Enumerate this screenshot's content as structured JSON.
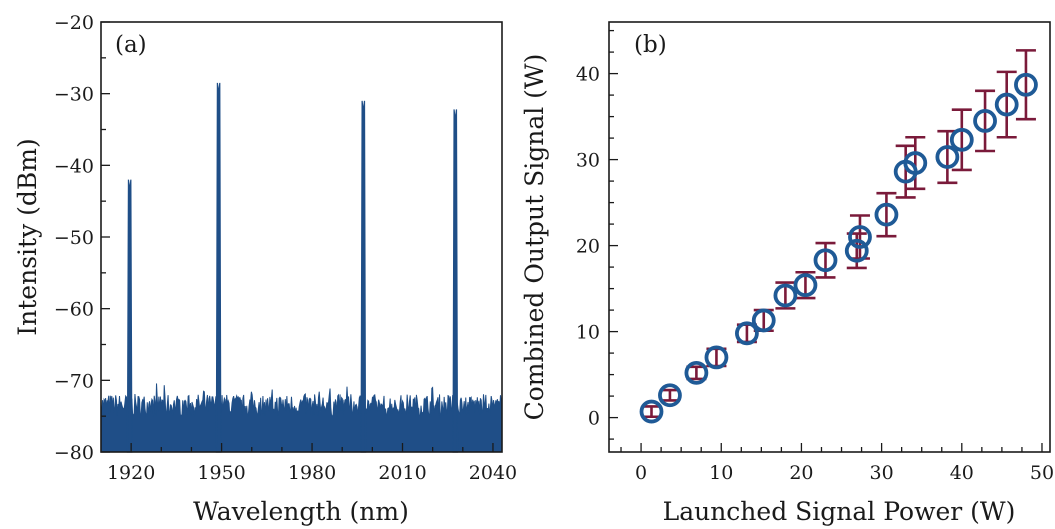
{
  "chart_data": [
    {
      "panel_label": "(a)",
      "type": "line",
      "xlabel": "Wavelength (nm)",
      "ylabel": "Intensity (dBm)",
      "xlim": [
        1910,
        2043
      ],
      "ylim": [
        -80,
        -20
      ],
      "xticks": [
        1920,
        1950,
        1980,
        2010,
        2040
      ],
      "yticks": [
        -80,
        -70,
        -60,
        -50,
        -40,
        -30,
        -20
      ],
      "noise_floor_dBm": -73.5,
      "peaks": [
        {
          "wavelength": 1919.5,
          "intensity": -43.5
        },
        {
          "wavelength": 1949.0,
          "intensity": -30.0
        },
        {
          "wavelength": 1997.0,
          "intensity": -32.5
        },
        {
          "wavelength": 2027.5,
          "intensity": -33.7
        }
      ],
      "line_color": "#1f4e87",
      "grid": false
    },
    {
      "panel_label": "(b)",
      "type": "scatter",
      "xlabel": "Launched Signal Power (W)",
      "ylabel": "Combined Output Signal (W)",
      "xlim": [
        -4,
        51
      ],
      "ylim": [
        -4,
        46
      ],
      "xticks": [
        0,
        10,
        20,
        30,
        40,
        50
      ],
      "yticks": [
        0,
        10,
        20,
        30,
        40
      ],
      "marker_color": "#1f5a96",
      "errorbar_color": "#7a1a3a",
      "grid": false,
      "points": [
        {
          "x": 1.3,
          "y": 0.7,
          "err": 0.6
        },
        {
          "x": 3.6,
          "y": 2.6,
          "err": 0.6
        },
        {
          "x": 6.9,
          "y": 5.2,
          "err": 0.7
        },
        {
          "x": 9.4,
          "y": 7.0,
          "err": 1.0
        },
        {
          "x": 13.2,
          "y": 9.8,
          "err": 1.0
        },
        {
          "x": 15.3,
          "y": 11.3,
          "err": 1.2
        },
        {
          "x": 18.0,
          "y": 14.2,
          "err": 1.5
        },
        {
          "x": 20.5,
          "y": 15.4,
          "err": 1.5
        },
        {
          "x": 23.0,
          "y": 18.3,
          "err": 2.0
        },
        {
          "x": 26.9,
          "y": 19.4,
          "err": 2.0
        },
        {
          "x": 27.3,
          "y": 21.0,
          "err": 2.5
        },
        {
          "x": 30.6,
          "y": 23.6,
          "err": 2.5
        },
        {
          "x": 33.0,
          "y": 28.6,
          "err": 3.0
        },
        {
          "x": 34.2,
          "y": 29.6,
          "err": 3.0
        },
        {
          "x": 38.2,
          "y": 30.3,
          "err": 3.0
        },
        {
          "x": 40.0,
          "y": 32.3,
          "err": 3.5
        },
        {
          "x": 42.9,
          "y": 34.5,
          "err": 3.5
        },
        {
          "x": 45.6,
          "y": 36.4,
          "err": 3.8
        },
        {
          "x": 48.0,
          "y": 38.7,
          "err": 4.0
        }
      ]
    }
  ]
}
